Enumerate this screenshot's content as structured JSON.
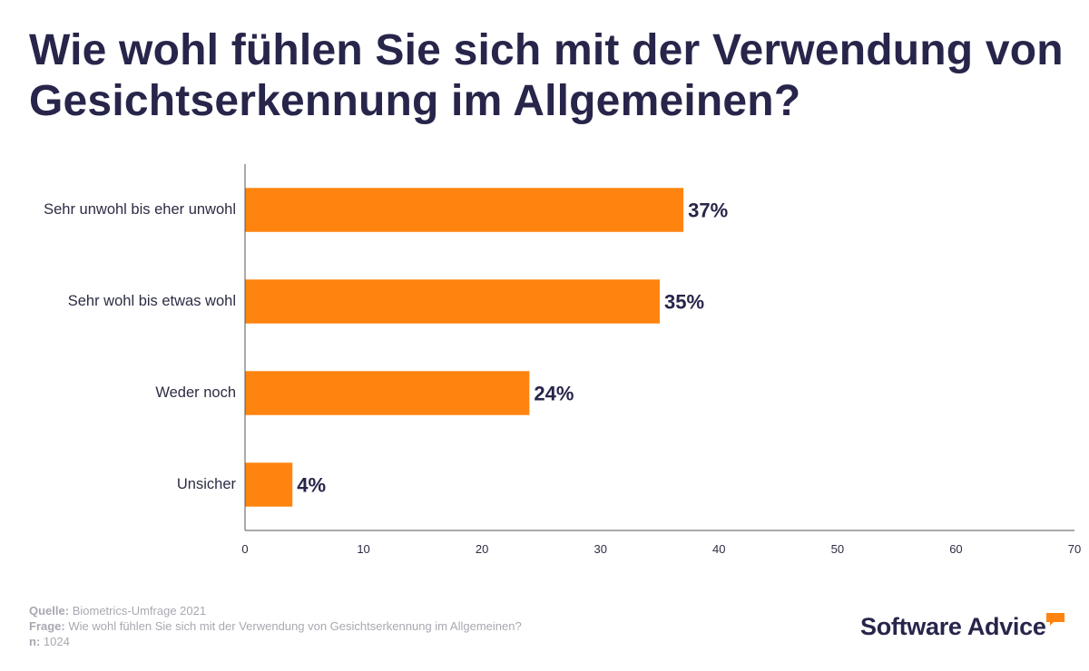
{
  "title": "Wie wohl fühlen Sie sich mit der Verwendung von Gesichtserkennung im Allgemeinen?",
  "colors": {
    "bar": "#ff840f",
    "title": "#27254a",
    "footer": "#a8a8b2",
    "axis": "#555555"
  },
  "chart_data": {
    "type": "bar",
    "orientation": "horizontal",
    "title": "Wie wohl fühlen Sie sich mit der Verwendung von Gesichtserkennung im Allgemeinen?",
    "categories": [
      "Sehr unwohl bis eher unwohl",
      "Sehr wohl bis etwas wohl",
      "Weder noch",
      "Unsicher"
    ],
    "values": [
      37,
      35,
      24,
      4
    ],
    "data_labels": [
      "37%",
      "35%",
      "24%",
      "4%"
    ],
    "xlim": [
      0,
      70
    ],
    "xticks": [
      0,
      10,
      20,
      30,
      40,
      50,
      60,
      70
    ],
    "xlabel": "",
    "ylabel": "",
    "grid": false
  },
  "footer": {
    "source_label": "Quelle:",
    "source_value": "Biometrics-Umfrage 2021",
    "question_label": "Frage:",
    "question_value": "Wie wohl fühlen Sie sich mit der Verwendung von Gesichtserkennung im Allgemeinen?",
    "n_label": "n:",
    "n_value": "1024"
  },
  "logo": {
    "text": "Software Advice",
    "icon": "speech-bubble-icon"
  }
}
